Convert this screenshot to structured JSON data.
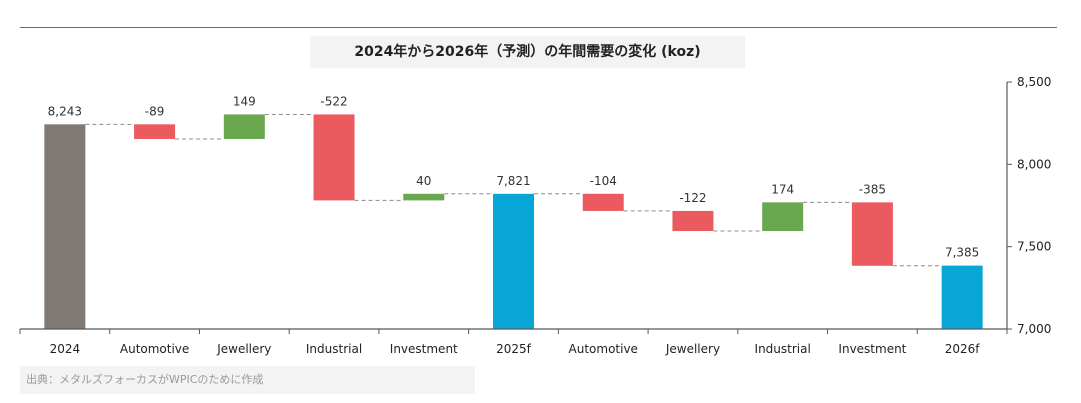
{
  "chart_data": {
    "type": "bar",
    "subtype": "waterfall",
    "title": "2024年から2026年（予測）の年間需要の変化 (koz)",
    "categories": [
      "2024",
      "Automotive",
      "Jewellery",
      "Industrial",
      "Investment",
      "2025f",
      "Automotive",
      "Jewellery",
      "Industrial",
      "Investment",
      "2026f"
    ],
    "values": [
      8243,
      -89,
      149,
      -522,
      40,
      7821,
      -104,
      -122,
      174,
      -385,
      7385
    ],
    "value_labels": [
      "8,243",
      "-89",
      "149",
      "-522",
      "40",
      "7,821",
      "-104",
      "-122",
      "174",
      "-385",
      "7,385"
    ],
    "bar_kinds": [
      "total",
      "delta",
      "delta",
      "delta",
      "delta",
      "total",
      "delta",
      "delta",
      "delta",
      "delta",
      "total"
    ],
    "ylim": [
      7000,
      8500
    ],
    "yticks": [
      7000,
      7500,
      8000,
      8500
    ],
    "ytick_labels": [
      "7,000",
      "7,500",
      "8,000",
      "8,500"
    ],
    "y_axis_side": "right",
    "xlabel": "",
    "ylabel": "",
    "grid": false,
    "legend": "none",
    "connector_lines": "dashed",
    "colors": {
      "total_2024": "#7f7873",
      "total_forecast": "#07a6d6",
      "increase": "#6aa84f",
      "decrease": "#ea5a5f",
      "axis": "#595959",
      "connector": "#8c8c8c"
    }
  },
  "source_note": "出典：メタルズフォーカスがWPICのために作成"
}
